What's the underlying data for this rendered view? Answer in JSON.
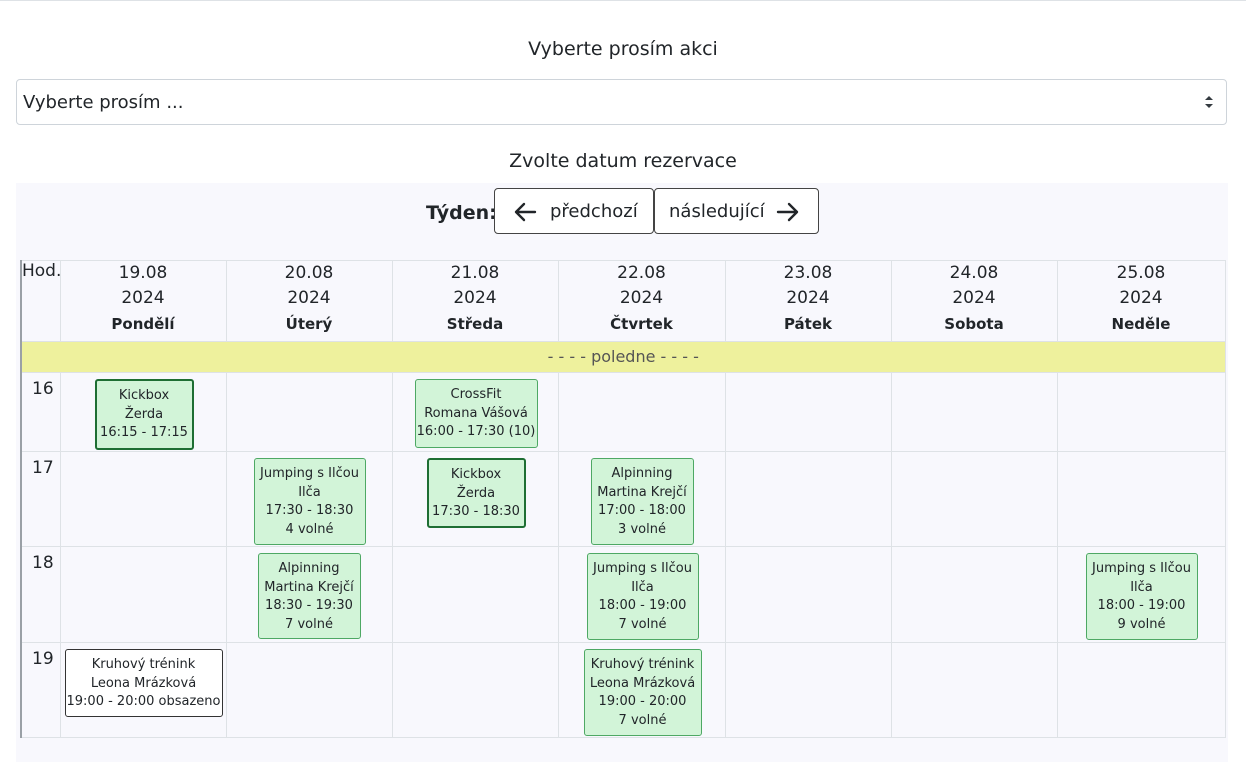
{
  "event_select": {
    "label": "Vyberte prosím akci",
    "value": "Vyberte prosím ..."
  },
  "date_select": {
    "label": "Zvolte datum rezervace",
    "week_label": "Týden:",
    "prev_label": "předchozí",
    "next_label": "následující"
  },
  "calendar": {
    "hour_header": "Hod.",
    "days": [
      {
        "date": "19.08",
        "year": "2024",
        "name": "Pondělí"
      },
      {
        "date": "20.08",
        "year": "2024",
        "name": "Úterý"
      },
      {
        "date": "21.08",
        "year": "2024",
        "name": "Středa"
      },
      {
        "date": "22.08",
        "year": "2024",
        "name": "Čtvrtek"
      },
      {
        "date": "23.08",
        "year": "2024",
        "name": "Pátek"
      },
      {
        "date": "24.08",
        "year": "2024",
        "name": "Sobota"
      },
      {
        "date": "25.08",
        "year": "2024",
        "name": "Neděle"
      }
    ],
    "noon_label": "- - - - poledne - - - -",
    "hours": [
      "16",
      "17",
      "18",
      "19"
    ],
    "events": [
      {
        "title": "Kickbox",
        "trainer": "Žerda",
        "time": "16:15 - 17:15",
        "info": ""
      },
      {
        "title": "CrossFit",
        "trainer": "Romana Vášová",
        "time": "16:00 - 17:30 (10)",
        "info": ""
      },
      {
        "title": "Jumping s Ilčou",
        "trainer": "Ilča",
        "time": "17:30 - 18:30",
        "info": "4 volné"
      },
      {
        "title": "Kickbox",
        "trainer": "Žerda",
        "time": "17:30 - 18:30",
        "info": ""
      },
      {
        "title": "Alpinning",
        "trainer": "Martina Krejčí",
        "time": "17:00 - 18:00",
        "info": "3 volné"
      },
      {
        "title": "Alpinning",
        "trainer": "Martina Krejčí",
        "time": "18:30 - 19:30",
        "info": "7 volné"
      },
      {
        "title": "Jumping s Ilčou",
        "trainer": "Ilča",
        "time": "18:00 - 19:00",
        "info": "7 volné"
      },
      {
        "title": "Jumping s Ilčou",
        "trainer": "Ilča",
        "time": "18:00 - 19:00",
        "info": "9 volné"
      },
      {
        "title": "Kruhový trénink",
        "trainer": "Leona Mrázková",
        "time": "19:00 - 20:00 obsazeno",
        "info": ""
      },
      {
        "title": "Kruhový trénink",
        "trainer": "Leona Mrázková",
        "time": "19:00 - 20:00",
        "info": "7 volné"
      }
    ]
  }
}
